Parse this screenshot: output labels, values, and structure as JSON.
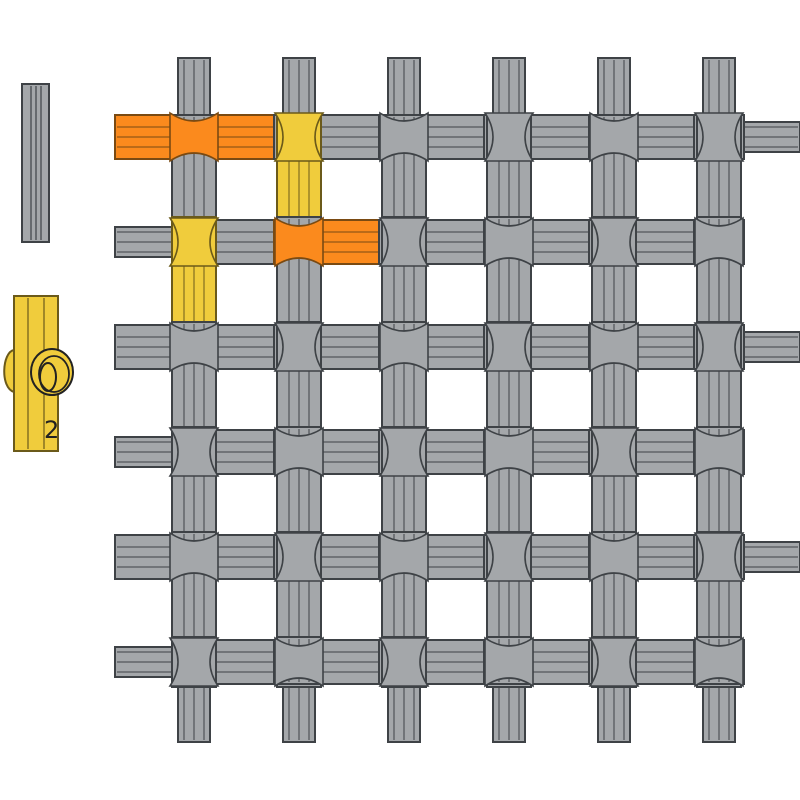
{
  "palette": {
    "gray_fill": "#a4a7aa",
    "gray_stroke": "#3e4246",
    "yellow_fill": "#f0cc3c",
    "yellow_stroke": "#6b5a1a",
    "orange_fill": "#fb8a1d",
    "orange_stroke": "#7a4a12",
    "background": "#ffffff"
  },
  "tray": {
    "rod_piece": {
      "name": "gray-rod",
      "color": "gray"
    },
    "connector_piece": {
      "name": "yellow-connector",
      "color": "yellow",
      "count_label": "2"
    }
  },
  "board": {
    "columns": 6,
    "rows": 6,
    "highlighted_pieces": [
      {
        "kind": "horizontal",
        "color": "orange",
        "row": 1,
        "col": 1
      },
      {
        "kind": "horizontal",
        "color": "orange",
        "row": 2,
        "col": 2
      },
      {
        "kind": "vertical",
        "color": "yellow",
        "row": 1,
        "col": 2
      },
      {
        "kind": "vertical",
        "color": "yellow",
        "row": 2,
        "col": 1
      }
    ]
  }
}
